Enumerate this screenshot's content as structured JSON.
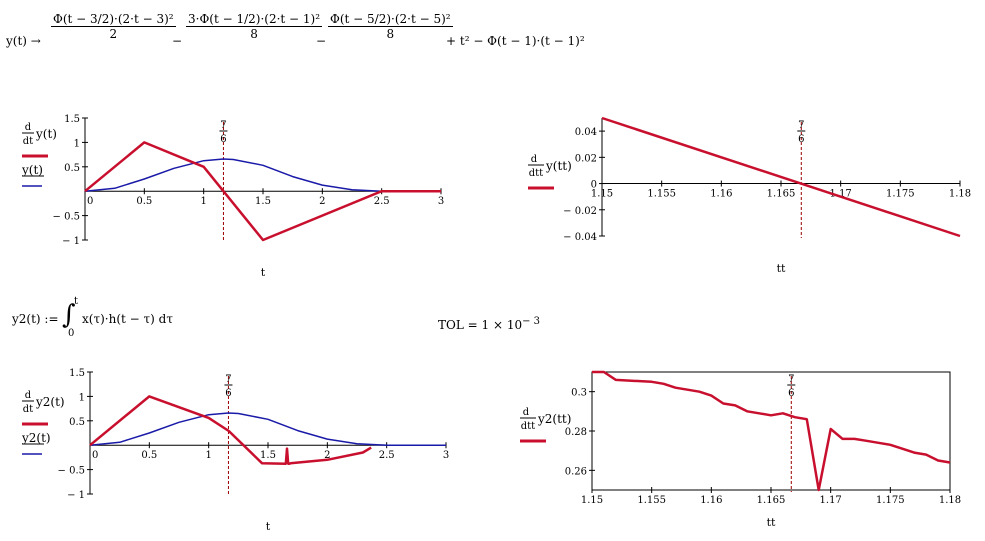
{
  "formula_y": {
    "lhs": "y(t) →",
    "term1_num": "Φ(t − 3/2)·(2·t − 3)²",
    "term1_den": "2",
    "minus1": "−",
    "term2_num": "3·Φ(t − 1/2)·(2·t − 1)²",
    "term2_den": "8",
    "minus2": "−",
    "term3_num": "Φ(t − 5/2)·(2·t − 5)²",
    "term3_den": "8",
    "tail": "+ t² − Φ(t − 1)·(t − 1)²"
  },
  "formula_y2": {
    "lhs": "y2(t) :=",
    "integral": "∫",
    "upper": "t",
    "lower": "0",
    "body": "x(τ)·h(t − τ) dτ"
  },
  "tol": {
    "text": "TOL = 1 × 10",
    "exp": "− 3"
  },
  "marker": {
    "num": "7",
    "den": "6"
  },
  "colors": {
    "red": "#c8102e",
    "blue": "#1a1aa8",
    "marker": "#9b0000"
  },
  "chart_data": [
    {
      "type": "line",
      "xlabel": "t",
      "xlim": [
        0,
        3
      ],
      "ylim": [
        -1,
        1.5
      ],
      "xticks": [
        "0",
        "0.5",
        "1",
        "1.5",
        "2",
        "2.5",
        "3"
      ],
      "yticks": [
        "1.5",
        "1",
        "0.5",
        "0",
        "− 0.5",
        "− 1"
      ],
      "marker_x": 1.1667,
      "series": [
        {
          "name": "d/dt y(t)",
          "legend_d": "d",
          "legend_dt": "dt",
          "legend_f": "y(t)",
          "color": "#c8102e",
          "x": [
            0,
            0.5,
            1,
            1.5,
            2.5,
            3
          ],
          "y": [
            0,
            1,
            0.5,
            -1,
            0,
            0
          ]
        },
        {
          "name": "y(t)",
          "legend_f": "y(t)",
          "color": "#1a1aa8",
          "x": [
            0,
            0.25,
            0.5,
            0.75,
            1,
            1.1667,
            1.25,
            1.5,
            1.75,
            2,
            2.25,
            2.5,
            3
          ],
          "y": [
            0,
            0.06,
            0.25,
            0.47,
            0.625,
            0.66,
            0.65,
            0.53,
            0.3,
            0.125,
            0.03,
            0,
            0
          ]
        }
      ]
    },
    {
      "type": "line",
      "xlabel": "tt",
      "xlim": [
        1.15,
        1.18
      ],
      "ylim": [
        -0.04,
        0.05
      ],
      "xticks": [
        "1.15",
        "1.155",
        "1.16",
        "1.165",
        "1.17",
        "1.175",
        "1.18"
      ],
      "yticks": [
        "0.04",
        "0.02",
        "0",
        "− 0.02",
        "− 0.04"
      ],
      "marker_x": 1.1667,
      "series": [
        {
          "name": "d/dtt y(tt)",
          "legend_d": "d",
          "legend_dt": "dtt",
          "legend_f": "y(tt)",
          "color": "#c8102e",
          "x": [
            1.15,
            1.18
          ],
          "y": [
            0.05,
            -0.04
          ]
        }
      ]
    },
    {
      "type": "line",
      "xlabel": "t",
      "xlim": [
        0,
        3
      ],
      "ylim": [
        -1,
        1.5
      ],
      "xticks": [
        "0",
        "0.5",
        "1",
        "1.5",
        "2",
        "2.5",
        "3"
      ],
      "yticks": [
        "1.5",
        "1",
        "0.5",
        "0",
        "− 0.5",
        "− 1"
      ],
      "marker_x": 1.1667,
      "series": [
        {
          "name": "d/dt y2(t)",
          "legend_d": "d",
          "legend_dt": "dt",
          "legend_f": "y2(t)",
          "color": "#c8102e",
          "x": [
            0,
            0.5,
            1.0,
            1.17,
            1.45,
            1.65,
            1.66,
            1.67,
            1.68,
            1.69,
            2.0,
            2.3,
            2.37
          ],
          "y": [
            0,
            1,
            0.56,
            0.29,
            -0.37,
            -0.38,
            -0.07,
            -0.38,
            -0.38,
            -0.37,
            -0.3,
            -0.15,
            -0.05
          ]
        },
        {
          "name": "y2(t)",
          "legend_f": "y2(t)",
          "color": "#1a1aa8",
          "x": [
            0,
            0.25,
            0.5,
            0.75,
            1,
            1.1667,
            1.25,
            1.5,
            1.75,
            2,
            2.25,
            2.5,
            3
          ],
          "y": [
            0,
            0.06,
            0.25,
            0.47,
            0.625,
            0.66,
            0.65,
            0.53,
            0.3,
            0.125,
            0.03,
            0,
            0
          ]
        }
      ]
    },
    {
      "type": "line",
      "xlabel": "tt",
      "xlim": [
        1.15,
        1.18
      ],
      "ylim": [
        0.25,
        0.31
      ],
      "xticks": [
        "1.15",
        "1.155",
        "1.16",
        "1.165",
        "1.17",
        "1.175",
        "1.18"
      ],
      "yticks": [
        "0.3",
        "0.28",
        "0.26"
      ],
      "marker_x": 1.1667,
      "series": [
        {
          "name": "d/dtt y2(tt)",
          "legend_d": "d",
          "legend_dt": "dtt",
          "legend_f": "y2(tt)",
          "color": "#c8102e",
          "x": [
            1.15,
            1.151,
            1.152,
            1.155,
            1.156,
            1.157,
            1.158,
            1.159,
            1.16,
            1.161,
            1.162,
            1.163,
            1.164,
            1.165,
            1.166,
            1.167,
            1.168,
            1.169,
            1.17,
            1.171,
            1.172,
            1.173,
            1.174,
            1.175,
            1.176,
            1.177,
            1.178,
            1.179,
            1.18
          ],
          "y": [
            0.31,
            0.31,
            0.306,
            0.305,
            0.304,
            0.302,
            0.301,
            0.3,
            0.298,
            0.294,
            0.293,
            0.29,
            0.289,
            0.288,
            0.289,
            0.287,
            0.286,
            0.25,
            0.281,
            0.276,
            0.276,
            0.275,
            0.274,
            0.273,
            0.271,
            0.269,
            0.268,
            0.265,
            0.264
          ]
        }
      ]
    }
  ]
}
